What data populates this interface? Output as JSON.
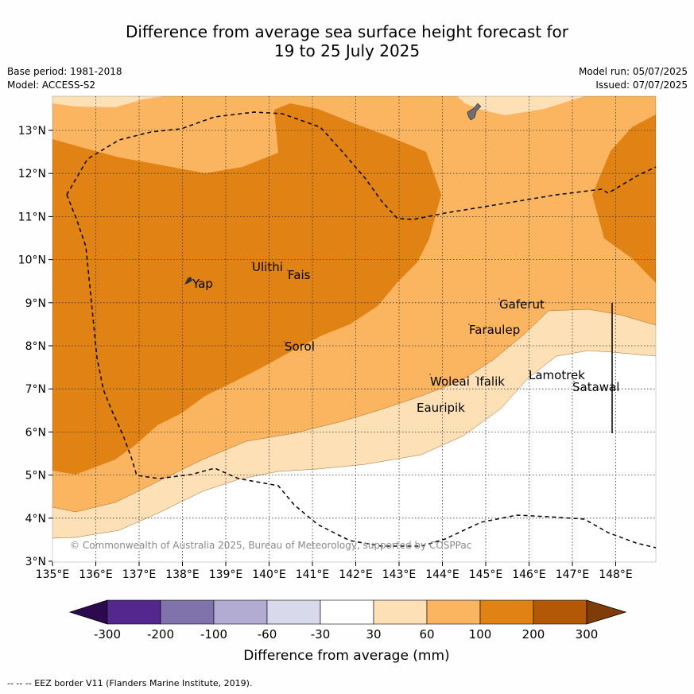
{
  "header": {
    "title_line1": "Difference from average sea surface height forecast for",
    "title_line2": "19 to 25 July 2025",
    "base_period": "Base period: 1981-2018",
    "model": "Model: ACCESS-S2",
    "model_run": "Model run: 05/07/2025",
    "issued": "Issued: 07/07/2025"
  },
  "map": {
    "lon_ticks": [
      "135°E",
      "136°E",
      "137°E",
      "138°E",
      "139°E",
      "140°E",
      "141°E",
      "142°E",
      "143°E",
      "144°E",
      "145°E",
      "146°E",
      "147°E",
      "148°E"
    ],
    "lat_ticks": [
      "3°N",
      "4°N",
      "5°N",
      "6°N",
      "7°N",
      "8°N",
      "9°N",
      "10°N",
      "11°N",
      "12°N",
      "13°N"
    ],
    "places": [
      {
        "name": "Yap"
      },
      {
        "name": "Ulithi"
      },
      {
        "name": "Fais"
      },
      {
        "name": "Sorol"
      },
      {
        "name": "Gaferut"
      },
      {
        "name": "Faraulep"
      },
      {
        "name": "Woleai"
      },
      {
        "name": "Ifalik"
      },
      {
        "name": "Lamotrek"
      },
      {
        "name": "Satawal"
      },
      {
        "name": "Eauripik"
      }
    ],
    "copyright": "© Commonwealth of Australia 2025, Bureau of Meteorology, supported by COSPPac"
  },
  "colorbar": {
    "ticks": [
      "-300",
      "-200",
      "-100",
      "-60",
      "-30",
      "30",
      "60",
      "100",
      "200",
      "300"
    ],
    "colors": [
      "#2d0a4e",
      "#54278f",
      "#8073ac",
      "#b2abd2",
      "#d8daeb",
      "#ffffff",
      "#fee0b6",
      "#fbb45f",
      "#e08214",
      "#b35806",
      "#7f3b08"
    ],
    "title": "Difference from average (mm)"
  },
  "footnote": "--  --  -- EEZ border V11 (Flanders Marine Institute, 2019)."
}
